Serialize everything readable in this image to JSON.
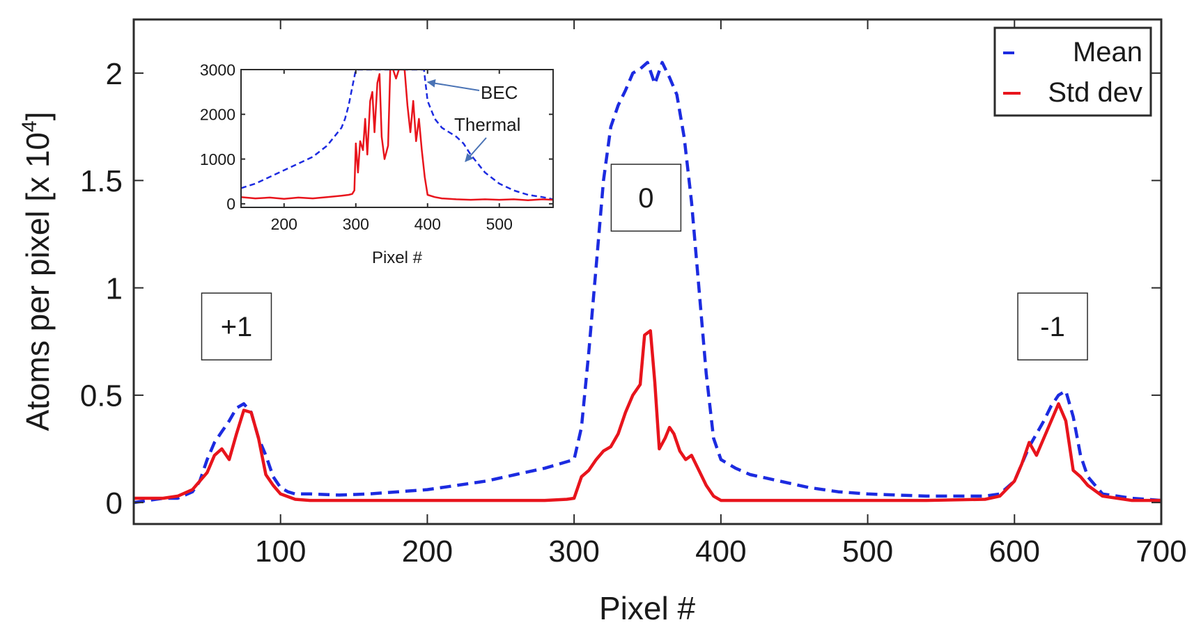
{
  "chart_data": [
    {
      "type": "line",
      "xlabel": "Pixel #",
      "ylabel": "Atoms per pixel [x 10",
      "ylabel_exponent": "4",
      "ylabel_suffix": "]",
      "xlim": [
        0,
        700
      ],
      "ylim": [
        -0.1,
        2.25
      ],
      "xticks": [
        100,
        200,
        300,
        400,
        500,
        600,
        700
      ],
      "xtick_labels": [
        "100",
        "200",
        "300",
        "400",
        "500",
        "600",
        "700"
      ],
      "yticks": [
        0,
        0.5,
        1,
        1.5,
        2
      ],
      "ytick_labels": [
        "0",
        "0.5",
        "1",
        "1.5",
        "2"
      ],
      "grid": false,
      "legend_position": "top-right",
      "series": [
        {
          "name": "Mean",
          "color": "#1c2be0",
          "style": "dashed",
          "x": [
            0,
            10,
            20,
            30,
            40,
            45,
            50,
            55,
            60,
            65,
            70,
            75,
            80,
            85,
            90,
            95,
            100,
            105,
            110,
            120,
            140,
            160,
            180,
            200,
            220,
            240,
            260,
            280,
            290,
            300,
            305,
            310,
            315,
            320,
            325,
            330,
            335,
            340,
            345,
            350,
            355,
            360,
            365,
            370,
            375,
            380,
            385,
            390,
            395,
            400,
            410,
            420,
            440,
            460,
            480,
            500,
            520,
            540,
            560,
            580,
            590,
            600,
            605,
            610,
            615,
            620,
            625,
            630,
            635,
            640,
            645,
            650,
            660,
            680,
            700
          ],
          "values": [
            0,
            0.01,
            0.02,
            0.02,
            0.05,
            0.1,
            0.2,
            0.28,
            0.33,
            0.38,
            0.44,
            0.46,
            0.42,
            0.3,
            0.22,
            0.12,
            0.07,
            0.05,
            0.04,
            0.04,
            0.035,
            0.04,
            0.05,
            0.06,
            0.08,
            0.1,
            0.13,
            0.16,
            0.18,
            0.2,
            0.35,
            0.7,
            1.1,
            1.5,
            1.75,
            1.85,
            1.92,
            2.0,
            2.02,
            2.05,
            1.95,
            2.05,
            1.98,
            1.9,
            1.7,
            1.4,
            1.0,
            0.6,
            0.3,
            0.2,
            0.16,
            0.13,
            0.1,
            0.07,
            0.05,
            0.04,
            0.035,
            0.03,
            0.03,
            0.03,
            0.04,
            0.1,
            0.18,
            0.26,
            0.32,
            0.38,
            0.45,
            0.5,
            0.52,
            0.4,
            0.22,
            0.12,
            0.04,
            0.02,
            0.01
          ]
        },
        {
          "name": "Std dev",
          "color": "#e8141c",
          "style": "solid",
          "x": [
            0,
            10,
            20,
            30,
            40,
            45,
            50,
            55,
            60,
            65,
            70,
            75,
            80,
            85,
            90,
            95,
            100,
            110,
            120,
            140,
            160,
            200,
            240,
            280,
            295,
            300,
            305,
            310,
            315,
            320,
            325,
            330,
            335,
            340,
            345,
            348,
            352,
            355,
            358,
            362,
            365,
            368,
            372,
            376,
            380,
            385,
            390,
            395,
            400,
            420,
            460,
            500,
            540,
            580,
            590,
            600,
            605,
            610,
            615,
            620,
            625,
            630,
            635,
            640,
            645,
            650,
            660,
            680,
            700
          ],
          "values": [
            0.02,
            0.02,
            0.02,
            0.03,
            0.06,
            0.1,
            0.14,
            0.22,
            0.25,
            0.2,
            0.32,
            0.43,
            0.42,
            0.3,
            0.13,
            0.08,
            0.04,
            0.015,
            0.01,
            0.01,
            0.01,
            0.01,
            0.01,
            0.01,
            0.015,
            0.02,
            0.12,
            0.15,
            0.2,
            0.24,
            0.26,
            0.32,
            0.42,
            0.5,
            0.55,
            0.78,
            0.8,
            0.56,
            0.25,
            0.3,
            0.35,
            0.32,
            0.24,
            0.2,
            0.22,
            0.15,
            0.08,
            0.03,
            0.01,
            0.01,
            0.01,
            0.01,
            0.01,
            0.015,
            0.03,
            0.1,
            0.18,
            0.28,
            0.22,
            0.3,
            0.38,
            0.46,
            0.38,
            0.15,
            0.12,
            0.08,
            0.03,
            0.01,
            0.01
          ]
        }
      ],
      "annotations": [
        {
          "text": "+1",
          "x": 70,
          "y": 0.82
        },
        {
          "text": "0",
          "x": 349,
          "y": 1.42
        },
        {
          "text": "-1",
          "x": 626,
          "y": 0.82
        }
      ]
    },
    {
      "type": "line",
      "role": "inset",
      "xlabel": "Pixel #",
      "ylabel": "",
      "xlim": [
        140,
        575
      ],
      "ylim": [
        -80,
        3000
      ],
      "xticks": [
        200,
        300,
        400,
        500
      ],
      "xtick_labels": [
        "200",
        "300",
        "400",
        "500"
      ],
      "yticks": [
        0,
        1000,
        2000,
        3000
      ],
      "ytick_labels": [
        "0",
        "1000",
        "2000",
        "3000"
      ],
      "grid": false,
      "series": [
        {
          "color": "#1c2be0",
          "style": "dashed",
          "x": [
            140,
            160,
            180,
            200,
            220,
            240,
            260,
            270,
            280,
            285,
            290,
            295,
            300,
            305,
            310,
            315,
            320,
            330,
            340,
            345,
            350,
            360,
            370,
            380,
            390,
            395,
            400,
            410,
            420,
            430,
            440,
            450,
            460,
            470,
            480,
            500,
            520,
            540,
            560,
            575
          ],
          "values": [
            350,
            450,
            600,
            750,
            900,
            1050,
            1300,
            1500,
            1700,
            1900,
            2200,
            2600,
            3000,
            3000,
            3000,
            3000,
            3000,
            3000,
            3000,
            3000,
            3000,
            3000,
            3000,
            3000,
            3000,
            3000,
            2300,
            1900,
            1700,
            1600,
            1500,
            1350,
            1100,
            900,
            700,
            450,
            300,
            200,
            150,
            100
          ]
        },
        {
          "color": "#e8141c",
          "style": "solid",
          "x": [
            140,
            160,
            180,
            200,
            220,
            240,
            260,
            280,
            290,
            295,
            298,
            300,
            303,
            306,
            310,
            313,
            316,
            320,
            323,
            326,
            330,
            333,
            336,
            340,
            345,
            348,
            352,
            356,
            360,
            364,
            368,
            372,
            376,
            380,
            384,
            388,
            392,
            396,
            400,
            410,
            420,
            440,
            460,
            480,
            500,
            520,
            540,
            560,
            575
          ],
          "values": [
            150,
            120,
            140,
            110,
            140,
            120,
            150,
            180,
            200,
            220,
            300,
            1350,
            700,
            1400,
            1200,
            1900,
            1100,
            2300,
            2500,
            1600,
            2700,
            2900,
            1500,
            1000,
            1300,
            3000,
            3000,
            2800,
            3000,
            3000,
            3000,
            2200,
            1600,
            2300,
            1400,
            1900,
            1200,
            600,
            200,
            150,
            120,
            100,
            90,
            100,
            90,
            100,
            80,
            100,
            90
          ]
        }
      ],
      "annotations": [
        {
          "text": "BEC",
          "x": 460,
          "y": 2600
        },
        {
          "text": "Thermal",
          "x": 450,
          "y": 1870
        }
      ]
    }
  ],
  "legend": {
    "items": [
      {
        "label": "Mean",
        "color": "#1c2be0",
        "style": "dashed"
      },
      {
        "label": "Std dev",
        "color": "#e8141c",
        "style": "solid"
      }
    ]
  }
}
